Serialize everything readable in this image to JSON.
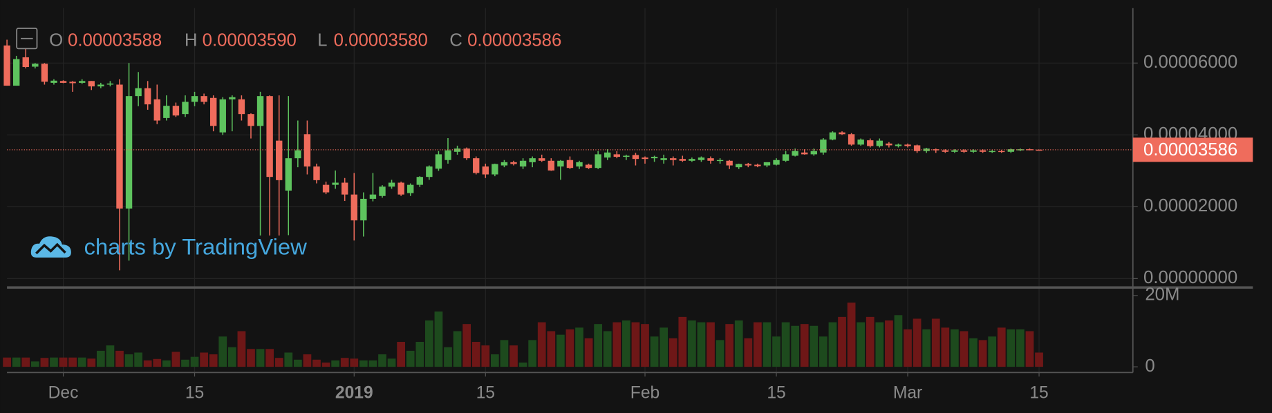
{
  "chart_data": {
    "type": "candlestick",
    "ohlc_legend": [
      {
        "label": "O",
        "value": "0.00003588"
      },
      {
        "label": "H",
        "value": "0.00003590"
      },
      {
        "label": "L",
        "value": "0.00003580"
      },
      {
        "label": "C",
        "value": "0.00003586"
      }
    ],
    "watermark": "charts by TradingView",
    "last_price": {
      "value": 3.586e-05,
      "label": "0.00003586"
    },
    "colors": {
      "up": "#5ec35e",
      "down": "#ef6c5c",
      "volume_up": "#1d4a1d",
      "volume_down": "#6e1717"
    },
    "grid": true,
    "xlim": [
      "2018-11-25",
      "2019-03-25"
    ],
    "xticks": [
      {
        "value": "2018-12-01",
        "label": "Dec"
      },
      {
        "value": "2018-12-15",
        "label": "15"
      },
      {
        "value": "2019-01-01",
        "label": "2019"
      },
      {
        "value": "2019-01-15",
        "label": "15"
      },
      {
        "value": "2019-02-01",
        "label": "Feb"
      },
      {
        "value": "2019-02-15",
        "label": "15"
      },
      {
        "value": "2019-03-01",
        "label": "Mar"
      },
      {
        "value": "2019-03-15",
        "label": "15"
      }
    ],
    "ylim": [
      -1.8e-06,
      7.53e-05
    ],
    "yticks": [
      {
        "value": 0,
        "label": "0.00000000"
      },
      {
        "value": 2e-05,
        "label": "0.00002000"
      },
      {
        "value": 4e-05,
        "label": "0.00004000"
      },
      {
        "value": 6e-05,
        "label": "0.00006000"
      }
    ],
    "volume_ylim": [
      -1600000,
      21800000
    ],
    "volume_yticks": [
      0,
      {
        "value": 20000000,
        "label": "20M"
      }
    ],
    "x": [
      "2018-11-25",
      "2018-11-26",
      "2018-11-27",
      "2018-11-28",
      "2018-11-29",
      "2018-11-30",
      "2018-12-01",
      "2018-12-02",
      "2018-12-03",
      "2018-12-04",
      "2018-12-05",
      "2018-12-06",
      "2018-12-07",
      "2018-12-08",
      "2018-12-09",
      "2018-12-10",
      "2018-12-11",
      "2018-12-12",
      "2018-12-13",
      "2018-12-14",
      "2018-12-15",
      "2018-12-16",
      "2018-12-17",
      "2018-12-18",
      "2018-12-19",
      "2018-12-20",
      "2018-12-21",
      "2018-12-22",
      "2018-12-23",
      "2018-12-24",
      "2018-12-25",
      "2018-12-26",
      "2018-12-27",
      "2018-12-28",
      "2018-12-29",
      "2018-12-30",
      "2018-12-31",
      "2019-01-01",
      "2019-01-02",
      "2019-01-03",
      "2019-01-04",
      "2019-01-05",
      "2019-01-06",
      "2019-01-07",
      "2019-01-08",
      "2019-01-09",
      "2019-01-10",
      "2019-01-11",
      "2019-01-12",
      "2019-01-13",
      "2019-01-14",
      "2019-01-15",
      "2019-01-16",
      "2019-01-17",
      "2019-01-18",
      "2019-01-19",
      "2019-01-20",
      "2019-01-21",
      "2019-01-22",
      "2019-01-23",
      "2019-01-24",
      "2019-01-25",
      "2019-01-26",
      "2019-01-27",
      "2019-01-28",
      "2019-01-29",
      "2019-01-30",
      "2019-01-31",
      "2019-02-01",
      "2019-02-02",
      "2019-02-03",
      "2019-02-04",
      "2019-02-05",
      "2019-02-06",
      "2019-02-07",
      "2019-02-08",
      "2019-02-09",
      "2019-02-10",
      "2019-02-11",
      "2019-02-12",
      "2019-02-13",
      "2019-02-14",
      "2019-02-15",
      "2019-02-16",
      "2019-02-17",
      "2019-02-18",
      "2019-02-19",
      "2019-02-20",
      "2019-02-21",
      "2019-02-22",
      "2019-02-23",
      "2019-02-24",
      "2019-02-25",
      "2019-02-26",
      "2019-02-27",
      "2019-02-28",
      "2019-03-01",
      "2019-03-02",
      "2019-03-03",
      "2019-03-04",
      "2019-03-05",
      "2019-03-06",
      "2019-03-07",
      "2019-03-08",
      "2019-03-09",
      "2019-03-10",
      "2019-03-11",
      "2019-03-12",
      "2019-03-13",
      "2019-03-14",
      "2019-03-15"
    ],
    "open": [
      6.49e-05,
      5.37e-05,
      6.16e-05,
      5.9e-05,
      5.98e-05,
      5.45e-05,
      5.5e-05,
      5.48e-05,
      5.45e-05,
      5.5e-05,
      5.35e-05,
      5.4e-05,
      5.4e-05,
      1.95e-05,
      5.08e-05,
      5.3e-05,
      4.99e-05,
      4.47e-05,
      4.81e-05,
      4.58e-05,
      4.92e-05,
      5.08e-05,
      5.03e-05,
      4.07e-05,
      4.99e-05,
      4.99e-05,
      4.58e-05,
      4.25e-05,
      5.08e-05,
      3.84e-05,
      2.45e-05,
      3.35e-05,
      4.02e-05,
      3.12e-05,
      2.61e-05,
      2.61e-05,
      2.67e-05,
      2.34e-05,
      1.62e-05,
      2.22e-05,
      2.3e-05,
      2.56e-05,
      2.67e-05,
      2.38e-05,
      2.61e-05,
      2.83e-05,
      3.06e-05,
      3.3e-05,
      3.53e-05,
      3.62e-05,
      3.35e-05,
      3.12e-05,
      2.9e-05,
      3.15e-05,
      3.24e-05,
      3.12e-05,
      3.24e-05,
      3.35e-05,
      3.28e-05,
      3.12e-05,
      3.3e-05,
      3.12e-05,
      3.17e-05,
      3.08e-05,
      3.37e-05,
      3.46e-05,
      3.39e-05,
      3.44e-05,
      3.37e-05,
      3.35e-05,
      3.3e-05,
      3.35e-05,
      3.33e-05,
      3.28e-05,
      3.3e-05,
      3.35e-05,
      3.28e-05,
      3.28e-05,
      3.1e-05,
      3.19e-05,
      3.17e-05,
      3.15e-05,
      3.17e-05,
      3.28e-05,
      3.42e-05,
      3.51e-05,
      3.46e-05,
      3.51e-05,
      3.87e-05,
      4.07e-05,
      4.02e-05,
      3.73e-05,
      3.85e-05,
      3.69e-05,
      3.76e-05,
      3.69e-05,
      3.73e-05,
      3.71e-05,
      3.55e-05,
      3.6e-05,
      3.57e-05,
      3.53e-05,
      3.57e-05,
      3.53e-05,
      3.57e-05,
      3.53e-05,
      3.55e-05,
      3.53e-05,
      3.57e-05,
      3.6e-05,
      3.588e-05
    ],
    "high": [
      6.65e-05,
      6.2e-05,
      6.4e-05,
      6e-05,
      6e-05,
      5.55e-05,
      5.52e-05,
      5.5e-05,
      5.55e-05,
      5.5e-05,
      5.45e-05,
      5.5e-05,
      5.55e-05,
      6e-05,
      5.75e-05,
      5.5e-05,
      5.4e-05,
      5.1e-05,
      4.9e-05,
      5.1e-05,
      5.2e-05,
      5.15e-05,
      5.1e-05,
      5.05e-05,
      5.1e-05,
      5.1e-05,
      4.6e-05,
      5.2e-05,
      5.1e-05,
      5.1e-05,
      5.08e-05,
      4.4e-05,
      4.4e-05,
      3.2e-05,
      2.7e-05,
      3.01e-05,
      2.8e-05,
      2.94e-05,
      2.4e-05,
      2.94e-05,
      2.6e-05,
      2.75e-05,
      2.7e-05,
      2.65e-05,
      2.85e-05,
      3.15e-05,
      3.55e-05,
      3.91e-05,
      3.7e-05,
      3.65e-05,
      3.4e-05,
      3.2e-05,
      3.2e-05,
      3.3e-05,
      3.28e-05,
      3.35e-05,
      3.4e-05,
      3.45e-05,
      3.35e-05,
      3.3e-05,
      3.4e-05,
      3.28e-05,
      3.2e-05,
      3.55e-05,
      3.6e-05,
      3.55e-05,
      3.45e-05,
      3.5e-05,
      3.4e-05,
      3.42e-05,
      3.45e-05,
      3.4e-05,
      3.42e-05,
      3.37e-05,
      3.4e-05,
      3.4e-05,
      3.35e-05,
      3.3e-05,
      3.2e-05,
      3.22e-05,
      3.2e-05,
      3.24e-05,
      3.35e-05,
      3.55e-05,
      3.62e-05,
      3.6e-05,
      3.62e-05,
      3.91e-05,
      4.1e-05,
      4.1e-05,
      4.05e-05,
      3.9e-05,
      3.9e-05,
      3.9e-05,
      3.8e-05,
      3.76e-05,
      3.76e-05,
      3.73e-05,
      3.64e-05,
      3.62e-05,
      3.6e-05,
      3.6e-05,
      3.6e-05,
      3.6e-05,
      3.6e-05,
      3.58e-05,
      3.58e-05,
      3.62e-05,
      3.62e-05,
      3.62e-05,
      3.59e-05
    ],
    "low": [
      5.37e-05,
      5.37e-05,
      5.85e-05,
      5.85e-05,
      5.4e-05,
      5.4e-05,
      5.44e-05,
      5.2e-05,
      5.42e-05,
      5.25e-05,
      5.3e-05,
      5.35e-05,
      2.3e-06,
      5e-06,
      4.8e-05,
      4.7e-05,
      4.3e-05,
      4.4e-05,
      4.5e-05,
      4.5e-05,
      4.8e-05,
      4.85e-05,
      4.1e-05,
      4e-05,
      4.1e-05,
      4.4e-05,
      3.9e-05,
      1.2e-05,
      1.2e-05,
      1.2e-05,
      1.21e-05,
      3.1e-05,
      2.9e-05,
      2.65e-05,
      2.35e-05,
      2.5e-05,
      2.16e-05,
      1.06e-05,
      1.17e-05,
      2.15e-05,
      2.25e-05,
      2.5e-05,
      2.3e-05,
      2.3e-05,
      2.55e-05,
      2.75e-05,
      3e-05,
      3.2e-05,
      3.45e-05,
      3.3e-05,
      2.9e-05,
      2.8e-05,
      2.85e-05,
      3.1e-05,
      3.15e-05,
      3.05e-05,
      3.1e-05,
      3.25e-05,
      3e-05,
      2.75e-05,
      3.05e-05,
      3.05e-05,
      3.05e-05,
      3.05e-05,
      3.3e-05,
      3.35e-05,
      3.3e-05,
      3.15e-05,
      3.2e-05,
      3.25e-05,
      3.2e-05,
      3.15e-05,
      3.25e-05,
      3.25e-05,
      3.25e-05,
      3.2e-05,
      3.2e-05,
      3.05e-05,
      3.05e-05,
      3.1e-05,
      3.1e-05,
      3.1e-05,
      3.15e-05,
      3.25e-05,
      3.4e-05,
      3.45e-05,
      3.42e-05,
      3.45e-05,
      3.85e-05,
      4e-05,
      3.7e-05,
      3.7e-05,
      3.65e-05,
      3.65e-05,
      3.65e-05,
      3.65e-05,
      3.65e-05,
      3.5e-05,
      3.5e-05,
      3.5e-05,
      3.5e-05,
      3.5e-05,
      3.5e-05,
      3.5e-05,
      3.5e-05,
      3.5e-05,
      3.5e-05,
      3.5e-05,
      3.55e-05,
      3.57e-05,
      3.58e-05
    ],
    "close": [
      5.37e-05,
      6.11e-05,
      5.89e-05,
      5.98e-05,
      5.48e-05,
      5.51e-05,
      5.45e-05,
      5.44e-05,
      5.5e-05,
      5.35e-05,
      5.4e-05,
      5.43e-05,
      1.95e-05,
      5.08e-05,
      5.3e-05,
      4.85e-05,
      4.4e-05,
      4.81e-05,
      4.54e-05,
      4.92e-05,
      5.08e-05,
      4.92e-05,
      4.25e-05,
      4.99e-05,
      5.05e-05,
      4.58e-05,
      4.25e-05,
      5.08e-05,
      2.83e-05,
      2.74e-05,
      3.35e-05,
      3.57e-05,
      3.12e-05,
      2.74e-05,
      2.4e-05,
      2.67e-05,
      2.34e-05,
      1.62e-05,
      2.22e-05,
      2.34e-05,
      2.56e-05,
      2.67e-05,
      2.34e-05,
      2.61e-05,
      2.83e-05,
      3.12e-05,
      3.46e-05,
      3.57e-05,
      3.62e-05,
      3.35e-05,
      2.94e-05,
      2.9e-05,
      3.19e-05,
      3.24e-05,
      3.19e-05,
      3.28e-05,
      3.35e-05,
      3.28e-05,
      3.01e-05,
      3.28e-05,
      3.08e-05,
      3.24e-05,
      3.08e-05,
      3.46e-05,
      3.51e-05,
      3.39e-05,
      3.42e-05,
      3.33e-05,
      3.33e-05,
      3.39e-05,
      3.35e-05,
      3.3e-05,
      3.28e-05,
      3.33e-05,
      3.37e-05,
      3.28e-05,
      3.3e-05,
      3.15e-05,
      3.19e-05,
      3.15e-05,
      3.13e-05,
      3.24e-05,
      3.3e-05,
      3.46e-05,
      3.55e-05,
      3.46e-05,
      3.55e-05,
      3.87e-05,
      4.07e-05,
      4.02e-05,
      3.73e-05,
      3.87e-05,
      3.69e-05,
      3.84e-05,
      3.71e-05,
      3.73e-05,
      3.69e-05,
      3.55e-05,
      3.62e-05,
      3.57e-05,
      3.53e-05,
      3.57e-05,
      3.53e-05,
      3.57e-05,
      3.53e-05,
      3.55e-05,
      3.53e-05,
      3.6e-05,
      3.6e-05,
      3.58e-05,
      3.586e-05
    ],
    "volume": [
      2600000.0,
      2600000.0,
      2600000.0,
      1500000.0,
      2500000.0,
      2600000.0,
      2600000.0,
      2600000.0,
      2600000.0,
      2300000.0,
      4500000.0,
      6000000.0,
      4500000.0,
      3500000.0,
      4000000.0,
      1800000.0,
      2200000.0,
      1800000.0,
      4200000.0,
      2000000.0,
      2800000.0,
      4000000.0,
      3500000.0,
      8500000.0,
      5500000.0,
      10000000.0,
      5000000.0,
      5000000.0,
      5000000.0,
      2500000.0,
      4000000.0,
      2000000.0,
      3500000.0,
      2000000.0,
      1200000.0,
      1800000.0,
      2500000.0,
      2300000.0,
      1800000.0,
      1800000.0,
      3500000.0,
      2300000.0,
      7000000.0,
      4500000.0,
      7000000.0,
      13000000.0,
      15500000.0,
      5500000.0,
      10000000.0,
      12000000.0,
      7000000.0,
      6000000.0,
      3500000.0,
      7500000.0,
      6000000.0,
      1200000.0,
      7500000.0,
      12500000.0,
      10000000.0,
      9000000.0,
      10500000.0,
      11000000.0,
      8000000.0,
      12000000.0,
      10000000.0,
      12500000.0,
      13000000.0,
      12500000.0,
      12000000.0,
      8500000.0,
      11000000.0,
      8000000.0,
      14000000.0,
      13000000.0,
      12500000.0,
      12500000.0,
      7500000.0,
      12000000.0,
      13000000.0,
      8000000.0,
      12500000.0,
      12500000.0,
      8500000.0,
      12500000.0,
      11500000.0,
      12000000.0,
      11500000.0,
      8500000.0,
      12500000.0,
      14000000.0,
      18000000.0,
      12500000.0,
      14000000.0,
      12500000.0,
      13000000.0,
      14500000.0,
      10500000.0,
      13500000.0,
      10500000.0,
      13500000.0,
      11000000.0,
      10500000.0,
      10000000.0,
      8000000.0,
      7500000.0,
      8500000.0,
      11000000.0,
      10500000.0,
      10500000.0,
      10000000.0,
      4000000.0
    ]
  }
}
